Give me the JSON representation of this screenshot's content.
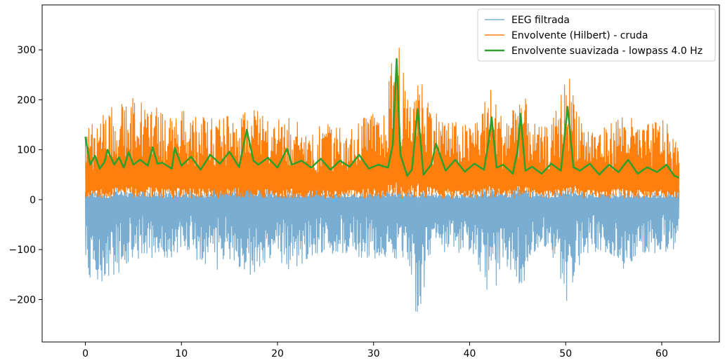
{
  "chart_data": {
    "type": "line",
    "title": "",
    "xlabel": "",
    "ylabel": "",
    "xlim": [
      -4.5,
      66.0
    ],
    "ylim": [
      -285,
      390
    ],
    "xticks": [
      0,
      10,
      20,
      30,
      40,
      50,
      60
    ],
    "yticks": [
      -200,
      -100,
      0,
      100,
      200,
      300
    ],
    "tick_labels_x": [
      "0",
      "10",
      "20",
      "30",
      "40",
      "50",
      "60"
    ],
    "tick_labels_y": [
      "−200",
      "−100",
      "0",
      "100",
      "200",
      "300"
    ],
    "legend_position": "top-right",
    "grid": false,
    "series": [
      {
        "name": "EEG filtrada",
        "color": "#1f77b4",
        "alpha": 0.6,
        "band": {
          "x": [
            0,
            2.3,
            5.0,
            8.0,
            10.5,
            12.5,
            14.0,
            15.3,
            16.8,
            19.0,
            21.0,
            23.5,
            25.5,
            27.5,
            29.5,
            31.0,
            32.4,
            33.5,
            34.6,
            36.0,
            38.0,
            40.0,
            42.3,
            43.5,
            45.3,
            47.0,
            48.5,
            50.2,
            52.0,
            54.0,
            56.0,
            58.0,
            60.0,
            61.8
          ],
          "upper": [
            20,
            15,
            25,
            15,
            20,
            15,
            40,
            25,
            45,
            25,
            20,
            25,
            15,
            15,
            15,
            20,
            30,
            20,
            20,
            15,
            15,
            15,
            30,
            15,
            30,
            15,
            15,
            30,
            15,
            15,
            15,
            15,
            15,
            25
          ],
          "lower": [
            -155,
            -170,
            -120,
            -120,
            -110,
            -130,
            -145,
            -120,
            -165,
            -120,
            -145,
            -120,
            -110,
            -110,
            -120,
            -120,
            -120,
            -120,
            -255,
            -110,
            -105,
            -110,
            -210,
            -125,
            -185,
            -100,
            -110,
            -210,
            -110,
            -105,
            -140,
            -105,
            -120,
            -90
          ]
        }
      },
      {
        "name": "Envolvente (Hilbert) - cruda",
        "color": "#ff7f0e",
        "band": {
          "x": [
            0,
            2.3,
            5.7,
            8.0,
            9.3,
            12.0,
            14.0,
            16.8,
            19.0,
            21.3,
            23.0,
            25.5,
            27.5,
            29.8,
            31.0,
            32.4,
            33.5,
            34.6,
            36.5,
            38.0,
            40.0,
            42.3,
            43.5,
            45.3,
            47.0,
            48.5,
            50.2,
            52.0,
            54.0,
            56.0,
            58.0,
            60.0,
            61.8
          ],
          "upper": [
            150,
            185,
            212,
            180,
            185,
            170,
            165,
            195,
            160,
            170,
            140,
            155,
            150,
            175,
            160,
            357,
            200,
            262,
            180,
            160,
            150,
            228,
            160,
            228,
            145,
            150,
            262,
            150,
            145,
            180,
            145,
            170,
            110
          ],
          "lower": [
            2,
            2,
            2,
            2,
            2,
            2,
            2,
            2,
            2,
            2,
            2,
            2,
            2,
            2,
            2,
            2,
            2,
            2,
            2,
            2,
            2,
            2,
            2,
            2,
            2,
            2,
            2,
            2,
            2,
            2,
            2,
            2,
            2
          ]
        }
      },
      {
        "name": "Envolvente suavizada - lowpass 4.0 Hz",
        "color": "#2ca02c",
        "line": {
          "x": [
            0,
            0.5,
            1.0,
            1.5,
            2.0,
            2.3,
            3.0,
            3.5,
            4.0,
            4.5,
            5.0,
            5.7,
            6.5,
            7.0,
            7.5,
            8.0,
            9.0,
            9.3,
            10.0,
            11.0,
            12.0,
            13.0,
            14.0,
            15.0,
            16.0,
            16.8,
            17.5,
            18.0,
            19.0,
            20.0,
            21.0,
            21.5,
            22.5,
            23.5,
            24.5,
            25.5,
            26.5,
            27.5,
            28.5,
            29.5,
            30.5,
            31.5,
            32.0,
            32.4,
            32.8,
            33.5,
            34.0,
            34.6,
            35.2,
            36.0,
            36.5,
            37.5,
            38.5,
            39.5,
            40.5,
            41.5,
            42.0,
            42.3,
            42.8,
            43.5,
            44.5,
            45.0,
            45.3,
            45.8,
            46.5,
            47.5,
            48.5,
            49.5,
            50.2,
            50.8,
            51.5,
            52.5,
            53.5,
            54.5,
            55.5,
            56.5,
            57.5,
            58.5,
            59.5,
            60.5,
            61.3,
            61.8
          ],
          "y": [
            126,
            70,
            88,
            62,
            76,
            100,
            70,
            85,
            64,
            95,
            70,
            80,
            68,
            105,
            72,
            74,
            62,
            104,
            68,
            86,
            60,
            90,
            72,
            96,
            65,
            140,
            78,
            70,
            84,
            64,
            102,
            70,
            78,
            64,
            82,
            60,
            78,
            66,
            90,
            62,
            70,
            64,
            110,
            282,
            90,
            48,
            60,
            182,
            50,
            70,
            112,
            58,
            80,
            56,
            72,
            60,
            120,
            165,
            64,
            70,
            52,
            100,
            172,
            58,
            66,
            52,
            72,
            58,
            186,
            65,
            58,
            72,
            50,
            70,
            55,
            80,
            52,
            65,
            55,
            70,
            48,
            44
          ]
        }
      }
    ]
  }
}
